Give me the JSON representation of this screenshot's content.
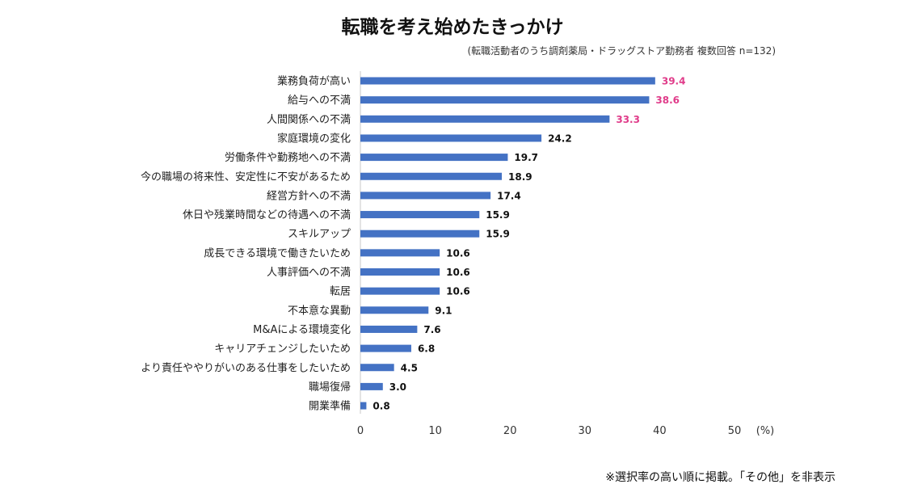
{
  "chart_data": {
    "type": "bar",
    "orientation": "horizontal",
    "title": "転職を考え始めたきっかけ",
    "subtitle": "(転職活動者のうち調剤薬局・ドラッグストア勤務者 複数回答 n=132)",
    "unit_label": "(%)",
    "footnote": "※選択率の高い順に掲載。「その他」を非表示",
    "xlim": [
      0,
      50
    ],
    "xticks": [
      0,
      10,
      20,
      30,
      40,
      50
    ],
    "bar_color": "#4472C4",
    "highlight_color": "#E03C8A",
    "default_label_color": "#111111",
    "highlight_top_n": 3,
    "categories": [
      "業務負荷が高い",
      "給与への不満",
      "人間関係への不満",
      "家庭環境の変化",
      "労働条件や勤務地への不満",
      "今の職場の将来性、安定性に不安があるため",
      "経営方針への不満",
      "休日や残業時間などの待遇への不満",
      "スキルアップ",
      "成長できる環境で働きたいため",
      "人事評価への不満",
      "転居",
      "不本意な異動",
      "M&Aによる環境変化",
      "キャリアチェンジしたいため",
      "より責任ややりがいのある仕事をしたいため",
      "職場復帰",
      "開業準備"
    ],
    "values": [
      39.4,
      38.6,
      33.3,
      24.2,
      19.7,
      18.9,
      17.4,
      15.9,
      15.9,
      10.6,
      10.6,
      10.6,
      9.1,
      7.6,
      6.8,
      4.5,
      3.0,
      0.8
    ],
    "value_labels": [
      "39.4",
      "38.6",
      "33.3",
      "24.2",
      "19.7",
      "18.9",
      "17.4",
      "15.9",
      "15.9",
      "10.6",
      "10.6",
      "10.6",
      "9.1",
      "7.6",
      "6.8",
      "4.5",
      "3.0",
      "0.8"
    ]
  }
}
